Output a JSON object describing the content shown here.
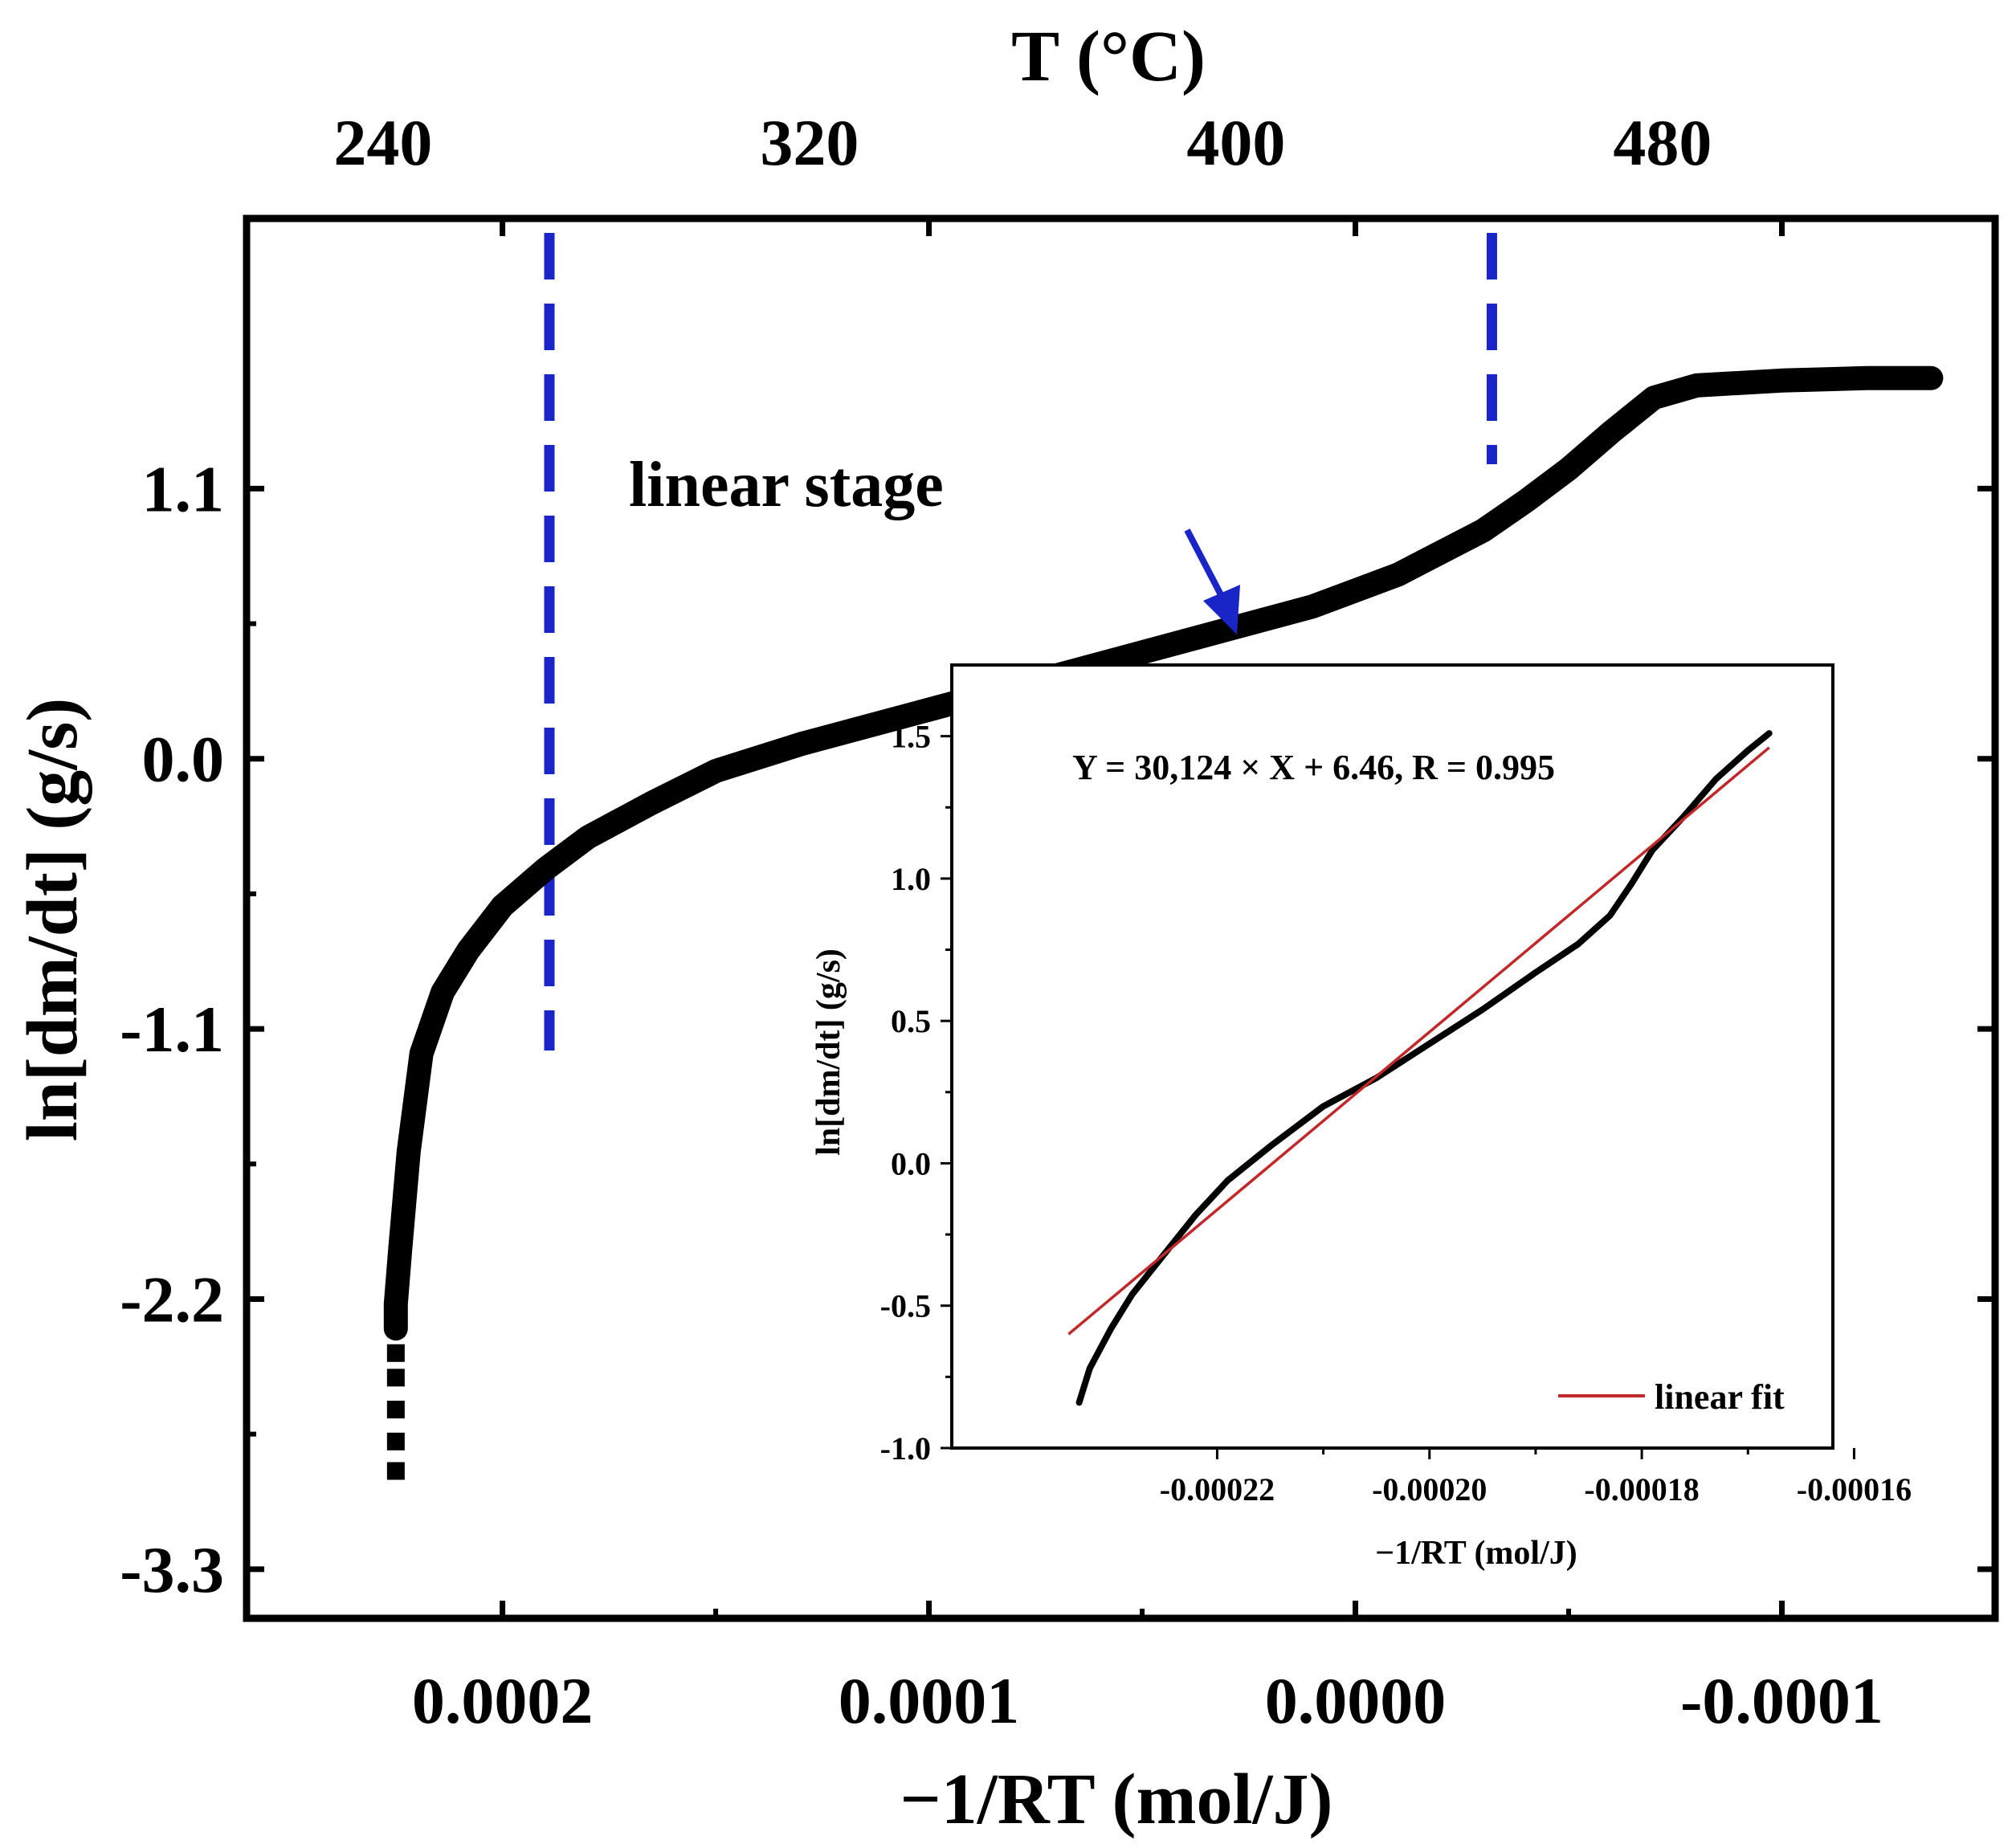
{
  "chart_data": [
    {
      "name": "main",
      "type": "scatter",
      "xlabel": "−1/RT (mol/J)",
      "ylabel": "ln[dm/dt] (g/s)",
      "xlim": [
        0.00026,
        -0.00015
      ],
      "ylim": [
        -3.5,
        2.2
      ],
      "x_ticks": [
        0.0002,
        0.0001,
        0.0,
        -0.0001
      ],
      "x_tick_labels": [
        "0.0002",
        "0.0001",
        "0.0000",
        "-0.0001"
      ],
      "y_ticks": [
        1.1,
        0.0,
        -1.1,
        -2.2,
        -3.3
      ],
      "y_tick_labels": [
        "1.1",
        "0.0",
        "-1.1",
        "-2.2",
        "-3.3"
      ],
      "top_axis": {
        "label": "T (°C)",
        "ticks": [
          240,
          320,
          400,
          480
        ],
        "tick_x_values": [
          0.000228,
          0.000128,
          2.8e-05,
          -7.2e-05
        ]
      },
      "series": [
        {
          "name": "ln[dm/dt]",
          "color": "#000000",
          "points": [
            [
              0.000225,
              -2.9
            ],
            [
              0.000225,
              -2.78
            ],
            [
              0.000225,
              -2.65
            ],
            [
              0.000225,
              -2.52
            ],
            [
              0.000225,
              -2.42
            ],
            [
              0.000225,
              -2.32
            ],
            [
              0.000225,
              -2.22
            ],
            [
              0.000224,
              -2.0
            ],
            [
              0.000222,
              -1.6
            ],
            [
              0.000219,
              -1.2
            ],
            [
              0.000214,
              -0.95
            ],
            [
              0.000208,
              -0.78
            ],
            [
              0.0002,
              -0.6
            ],
            [
              0.00019,
              -0.45
            ],
            [
              0.00018,
              -0.32
            ],
            [
              0.000165,
              -0.18
            ],
            [
              0.00015,
              -0.05
            ],
            [
              0.00013,
              0.06
            ],
            [
              0.0001,
              0.2
            ],
            [
              7e-05,
              0.34
            ],
            [
              4e-05,
              0.48
            ],
            [
              1e-05,
              0.62
            ],
            [
              -1e-05,
              0.75
            ],
            [
              -3e-05,
              0.93
            ],
            [
              -4e-05,
              1.05
            ],
            [
              -5e-05,
              1.18
            ],
            [
              -6e-05,
              1.33
            ],
            [
              -7e-05,
              1.47
            ],
            [
              -8e-05,
              1.52
            ],
            [
              -0.0001,
              1.54
            ],
            [
              -0.00012,
              1.55
            ],
            [
              -0.000135,
              1.55
            ]
          ]
        }
      ],
      "vlines": [
        0.000189,
        -3.2e-05
      ],
      "vline_color": "#1a25c8",
      "annotation": "linear stage",
      "arrow_color": "#1a25c8"
    },
    {
      "name": "inset",
      "type": "line",
      "xlabel": "−1/RT (mol/J)",
      "ylabel": "ln[dm/dt] (g/s)",
      "xlim": [
        -0.000245,
        -0.000162
      ],
      "ylim": [
        -1.0,
        1.75
      ],
      "x_ticks": [
        -0.00022,
        -0.0002,
        -0.00018,
        -0.00016
      ],
      "x_tick_labels": [
        "-0.00022",
        "-0.00020",
        "-0.00018",
        "-0.00016"
      ],
      "y_ticks": [
        1.5,
        1.0,
        0.5,
        0.0,
        -0.5,
        -1.0
      ],
      "y_tick_labels": [
        "1.5",
        "1.0",
        "0.5",
        "0.0",
        "-0.5",
        "-1.0"
      ],
      "equation": "Y = 30,124 × X + 6.46, R = 0.995",
      "legend": "linear fit",
      "series": [
        {
          "name": "data",
          "color": "#000000",
          "points": [
            [
              -0.000233,
              -0.84
            ],
            [
              -0.000232,
              -0.72
            ],
            [
              -0.00023,
              -0.58
            ],
            [
              -0.000228,
              -0.46
            ],
            [
              -0.000225,
              -0.32
            ],
            [
              -0.000222,
              -0.18
            ],
            [
              -0.000219,
              -0.06
            ],
            [
              -0.000215,
              0.06
            ],
            [
              -0.00021,
              0.2
            ],
            [
              -0.000205,
              0.3
            ],
            [
              -0.0002,
              0.42
            ],
            [
              -0.000195,
              0.54
            ],
            [
              -0.00019,
              0.67
            ],
            [
              -0.000186,
              0.77
            ],
            [
              -0.000183,
              0.87
            ],
            [
              -0.000181,
              0.98
            ],
            [
              -0.000179,
              1.1
            ],
            [
              -0.000176,
              1.22
            ],
            [
              -0.000173,
              1.35
            ],
            [
              -0.00017,
              1.45
            ],
            [
              -0.000168,
              1.51
            ]
          ]
        },
        {
          "name": "linear fit",
          "color": "#c0282a",
          "points": [
            [
              -0.000234,
              -0.6
            ],
            [
              -0.000168,
              1.46
            ]
          ]
        }
      ]
    }
  ]
}
